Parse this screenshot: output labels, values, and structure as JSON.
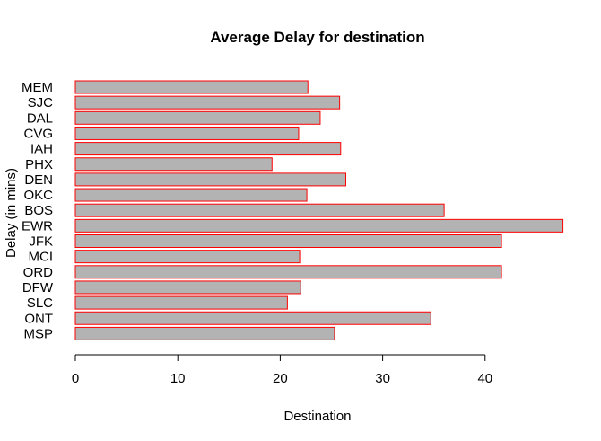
{
  "chart_data": {
    "type": "bar",
    "orientation": "horizontal",
    "title": "Average Delay for destination",
    "xlabel": "Destination",
    "ylabel": "Delay (in mins)",
    "categories": [
      "MEM",
      "SJC",
      "DAL",
      "CVG",
      "IAH",
      "PHX",
      "DEN",
      "OKC",
      "BOS",
      "EWR",
      "JFK",
      "MCI",
      "ORD",
      "DFW",
      "SLC",
      "ONT",
      "MSP"
    ],
    "values": [
      22.7,
      25.8,
      23.9,
      21.8,
      25.9,
      19.2,
      26.4,
      22.6,
      36.0,
      47.6,
      41.6,
      21.9,
      41.6,
      22.0,
      20.7,
      34.7,
      25.3
    ],
    "xlim": [
      0,
      48
    ],
    "xticks": [
      0,
      10,
      20,
      30,
      40
    ],
    "bar_fill": "#b3b3b3",
    "bar_stroke": "#ff0000",
    "grid": false,
    "legend": "none"
  }
}
